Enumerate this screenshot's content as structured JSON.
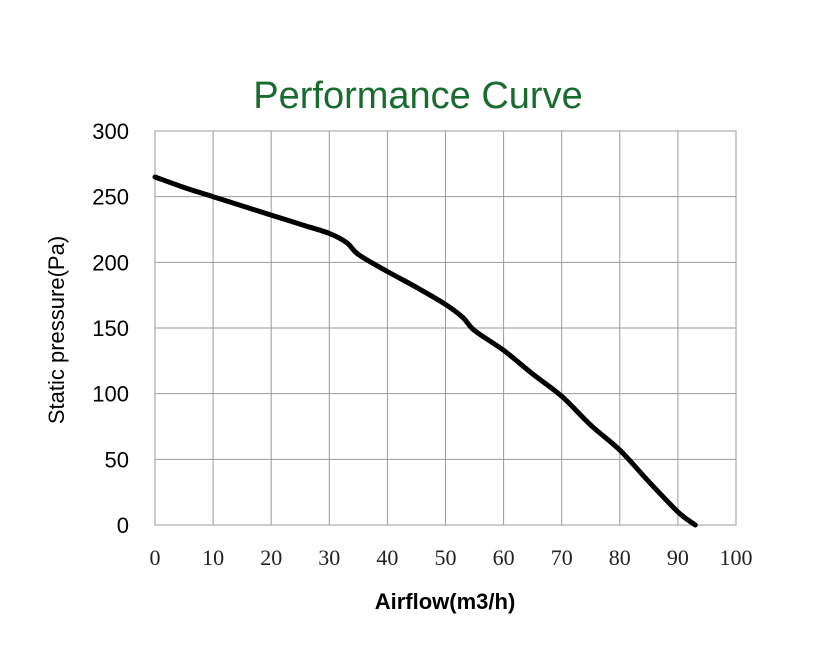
{
  "chart_data": {
    "type": "line",
    "title": "Performance Curve",
    "title_color": "#1a6b2f",
    "xlabel": "Airflow(m3/h)",
    "ylabel": "Static pressure(Pa)",
    "xlim": [
      0,
      100
    ],
    "ylim": [
      0,
      300
    ],
    "xticks": [
      "0",
      "10",
      "20",
      "30",
      "40",
      "50",
      "60",
      "70",
      "80",
      "90",
      "100"
    ],
    "yticks": [
      "0",
      "50",
      "100",
      "150",
      "200",
      "250",
      "300"
    ],
    "grid": true,
    "line_color": "#000000",
    "series": [
      {
        "x": [
          0,
          5,
          10,
          15,
          20,
          25,
          30,
          33,
          35,
          40,
          45,
          50,
          53,
          55,
          60,
          65,
          70,
          75,
          80,
          85,
          90,
          93
        ],
        "y": [
          265,
          257,
          250,
          243,
          236,
          229,
          222,
          215,
          206,
          193,
          181,
          168,
          158,
          148,
          133,
          115,
          98,
          76,
          57,
          33,
          10,
          0
        ]
      }
    ]
  }
}
